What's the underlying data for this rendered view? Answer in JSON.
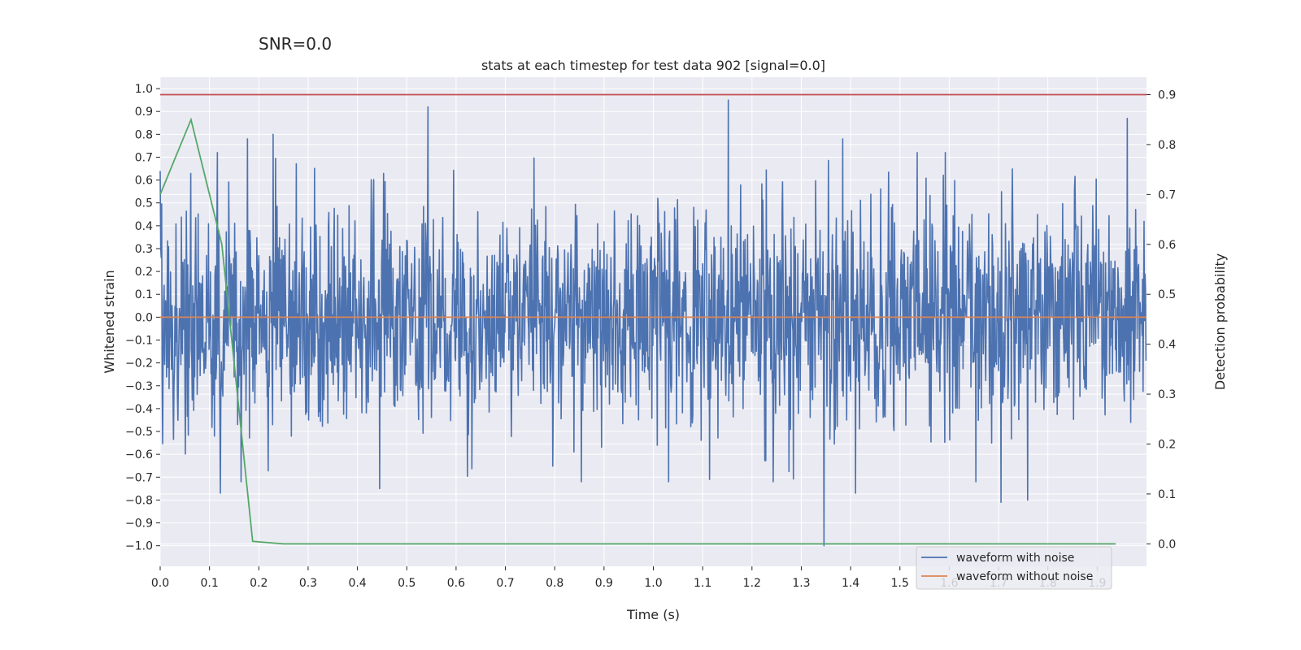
{
  "suptitle": "SNR=0.0",
  "colors": {
    "background": "#eaeaf2",
    "grid": "#ffffff",
    "noisy": "#4c72b0",
    "clean": "#dd8452",
    "prob": "#55a868",
    "threshold": "#c44e52"
  },
  "chart_data": {
    "type": "line",
    "title": "stats at each timestep for test data 902 [signal=0.0]",
    "xlabel": "Time (s)",
    "ylabel": "Whitened strain",
    "y2label": "Detection probability",
    "xlim": [
      0.0,
      2.0
    ],
    "ylim": [
      -1.09,
      1.05
    ],
    "y2lim": [
      -0.045,
      0.935
    ],
    "xticks": [
      0.0,
      0.1,
      0.2,
      0.3,
      0.4,
      0.5,
      0.6,
      0.7,
      0.8,
      0.9,
      1.0,
      1.1,
      1.2,
      1.3,
      1.4,
      1.5,
      1.6,
      1.7,
      1.8,
      1.9
    ],
    "xtick_labels": [
      "0.0",
      "0.1",
      "0.2",
      "0.3",
      "0.4",
      "0.5",
      "0.6",
      "0.7",
      "0.8",
      "0.9",
      "1.0",
      "1.1",
      "1.2",
      "1.3",
      "1.4",
      "1.5",
      "1.6",
      "1.7",
      "1.8",
      "1.9"
    ],
    "yticks": [
      1.0,
      0.9,
      0.8,
      0.7,
      0.6,
      0.5,
      0.4,
      0.3,
      0.2,
      0.1,
      0.0,
      -0.1,
      -0.2,
      -0.3,
      -0.4,
      -0.5,
      -0.6,
      -0.7,
      -0.8,
      -0.9,
      -1.0
    ],
    "ytick_labels": [
      "1.0",
      "0.9",
      "0.8",
      "0.7",
      "0.6",
      "0.5",
      "0.4",
      "0.3",
      "0.2",
      "0.1",
      "0.0",
      "−0.1",
      "−0.2",
      "−0.3",
      "−0.4",
      "−0.5",
      "−0.6",
      "−0.7",
      "−0.8",
      "−0.9",
      "−1.0"
    ],
    "y2ticks": [
      0.9,
      0.8,
      0.7,
      0.6,
      0.5,
      0.4,
      0.3,
      0.2,
      0.1,
      0.0
    ],
    "y2tick_labels": [
      "0.9",
      "0.8",
      "0.7",
      "0.6",
      "0.5",
      "0.4",
      "0.3",
      "0.2",
      "0.1",
      "0.0"
    ],
    "noise": {
      "name": "waveform with noise",
      "samples": 2000,
      "seed": 902,
      "amplitude_std": 0.25,
      "peaks": [
        {
          "x": 1.152,
          "y": 0.95
        },
        {
          "x": 0.543,
          "y": 0.92
        },
        {
          "x": 1.961,
          "y": 0.87
        },
        {
          "x": 0.229,
          "y": 0.8
        },
        {
          "x": 0.177,
          "y": 0.78
        },
        {
          "x": 1.384,
          "y": 0.78
        },
        {
          "x": 0.0,
          "y": 0.64
        },
        {
          "x": 1.346,
          "y": -1.0
        },
        {
          "x": 1.705,
          "y": -0.81
        },
        {
          "x": 1.759,
          "y": -0.8
        },
        {
          "x": 0.122,
          "y": -0.77
        },
        {
          "x": 0.445,
          "y": -0.75
        },
        {
          "x": 1.41,
          "y": -0.77
        },
        {
          "x": 1.114,
          "y": -0.71
        }
      ]
    },
    "series": [
      {
        "name": "waveform without noise",
        "axis": "left",
        "x": [
          0.0,
          2.0
        ],
        "y": [
          0.0,
          0.0
        ]
      },
      {
        "name": "detection probability",
        "axis": "right",
        "x": [
          0.0,
          0.0625,
          0.125,
          0.1875,
          0.25,
          0.3125,
          1.9375
        ],
        "y": [
          0.7,
          0.85,
          0.6,
          0.005,
          0.0,
          0.0,
          0.0
        ]
      },
      {
        "name": "threshold",
        "axis": "right",
        "x": [
          0.0,
          2.0
        ],
        "y": [
          0.9,
          0.9
        ]
      }
    ],
    "legend": {
      "position": "lower-right",
      "entries": [
        "waveform with noise",
        "waveform without noise"
      ]
    }
  }
}
